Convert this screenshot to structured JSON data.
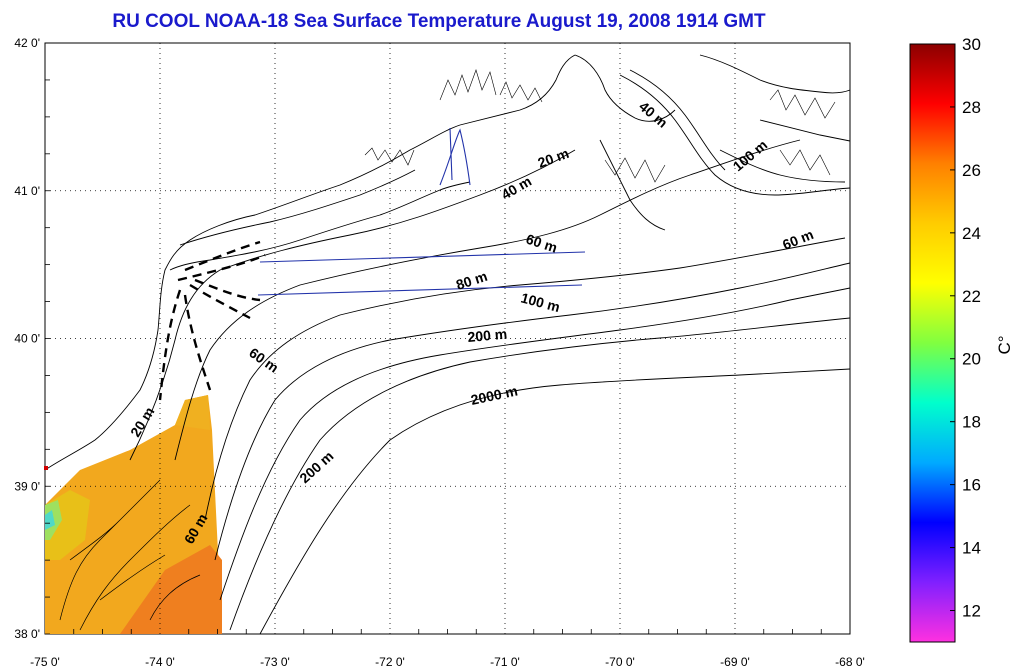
{
  "title": "RU COOL  NOAA-18 Sea Surface Temperature August 19, 2008 1914 GMT",
  "lat_ticks": [
    {
      "value": 42,
      "label": "42 0'"
    },
    {
      "value": 41,
      "label": "41 0'"
    },
    {
      "value": 40,
      "label": "40 0'"
    },
    {
      "value": 39,
      "label": "39 0'"
    },
    {
      "value": 38,
      "label": "38 0'"
    }
  ],
  "lon_ticks": [
    {
      "value": -75,
      "label": "-75 0'"
    },
    {
      "value": -74,
      "label": "-74 0'"
    },
    {
      "value": -73,
      "label": "-73 0'"
    },
    {
      "value": -72,
      "label": "-72 0'"
    },
    {
      "value": -71,
      "label": "-71 0'"
    },
    {
      "value": -70,
      "label": "-70 0'"
    },
    {
      "value": -69,
      "label": "-69 0'"
    },
    {
      "value": -68,
      "label": "-68 0'"
    }
  ],
  "bounds": {
    "lon_min": -75,
    "lon_max": -68,
    "lat_min": 38,
    "lat_max": 42
  },
  "grid": true,
  "colorbar": {
    "unit": "C°",
    "min": 11,
    "max": 30,
    "ticks": [
      "30",
      "28",
      "26",
      "24",
      "22",
      "20",
      "18",
      "16",
      "14",
      "12"
    ],
    "stops": [
      "#8b0000",
      "#ff0000",
      "#ff8000",
      "#ffcc00",
      "#ffff00",
      "#80ff40",
      "#00ffcc",
      "#00aaff",
      "#0000ff",
      "#8020ff",
      "#ff30e0"
    ]
  },
  "contour_labels": [
    "20 m",
    "40 m",
    "40 m",
    "100 m",
    "60 m",
    "60 m",
    "80 m",
    "100 m",
    "200 m",
    "60 m",
    "2000 m",
    "20 m",
    "200 m",
    "60 m"
  ],
  "colors": {
    "title": "#1a1acc",
    "coast": "#000000",
    "transect": "#2233aa",
    "sst_main": "#f0a020"
  }
}
